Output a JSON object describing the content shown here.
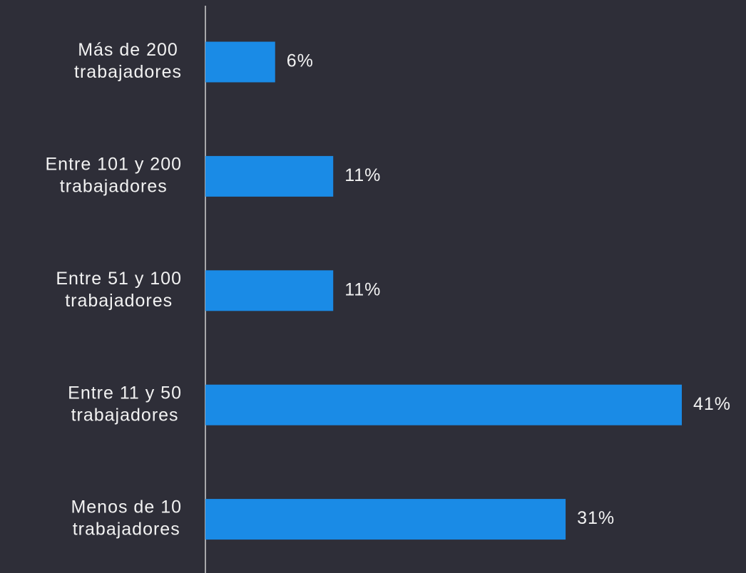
{
  "chart_data": {
    "type": "bar",
    "orientation": "horizontal",
    "categories": [
      [
        "Más de 200",
        "trabajadores"
      ],
      [
        "Entre 101 y 200",
        "trabajadores"
      ],
      [
        "Entre 51 y 100",
        "trabajadores"
      ],
      [
        "Entre 11 y 50",
        "trabajadores"
      ],
      [
        "Menos de 10",
        "trabajadores"
      ]
    ],
    "values": [
      6,
      11,
      11,
      41,
      31
    ],
    "value_labels": [
      "6%",
      "11%",
      "11%",
      "41%",
      "31%"
    ],
    "color": "#1a8be6"
  }
}
